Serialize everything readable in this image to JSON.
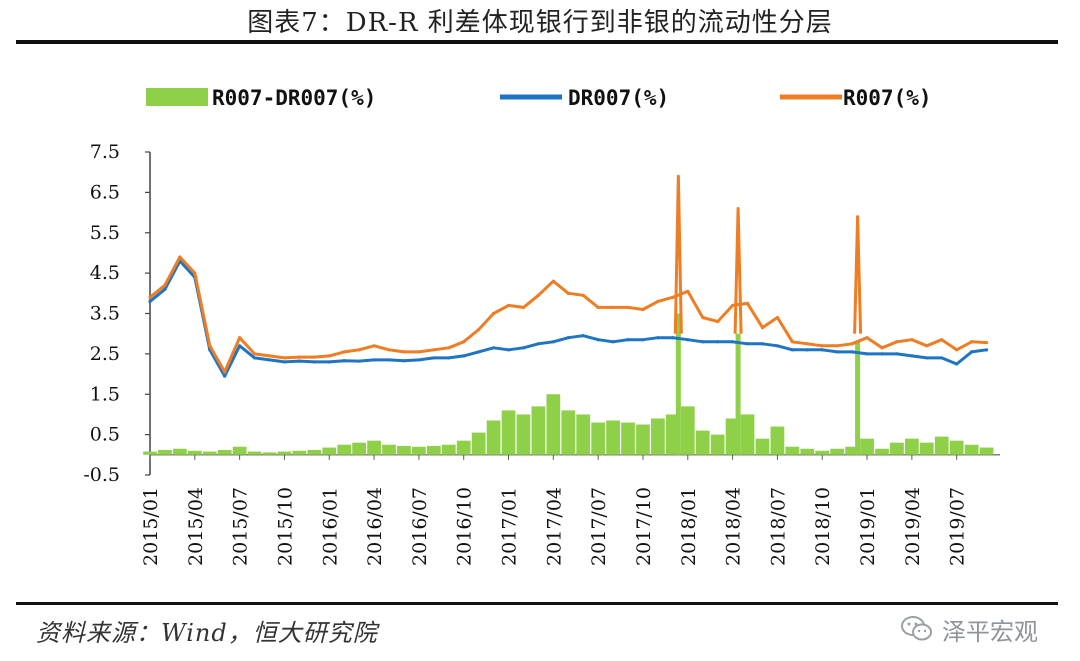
{
  "header": {
    "title": "图表7：DR-R 利差体现银行到非银的流动性分层"
  },
  "footer": {
    "source": "资料来源：Wind，恒大研究院",
    "watermark_text": "泽平宏观",
    "watermark_icon": "wechat-icon"
  },
  "colors": {
    "spread": "#8ed048",
    "dr007": "#1f74c4",
    "r007": "#ee7d24"
  },
  "chart_data": {
    "type": "line",
    "title": "",
    "xlabel": "",
    "ylabel": "",
    "ylim": [
      -0.5,
      7.5
    ],
    "y_ticks": [
      "7.5",
      "6.5",
      "5.5",
      "4.5",
      "3.5",
      "2.5",
      "1.5",
      "0.5",
      "-0.5"
    ],
    "x_range": [
      "2015/01",
      "2019/09"
    ],
    "x_ticks": [
      "2015/01",
      "2015/04",
      "2015/07",
      "2015/10",
      "2016/01",
      "2016/04",
      "2016/07",
      "2016/10",
      "2017/01",
      "2017/04",
      "2017/07",
      "2017/10",
      "2018/01",
      "2018/04",
      "2018/07",
      "2018/10",
      "2019/01",
      "2019/04",
      "2019/07"
    ],
    "legend_position": "top",
    "grid": false,
    "series": [
      {
        "name": "R007-DR007(%)",
        "style": "area",
        "x": [
          "2015/01",
          "2015/02",
          "2015/03",
          "2015/04",
          "2015/05",
          "2015/06",
          "2015/07",
          "2015/08",
          "2015/09",
          "2015/10",
          "2015/11",
          "2015/12",
          "2016/01",
          "2016/02",
          "2016/03",
          "2016/04",
          "2016/05",
          "2016/06",
          "2016/07",
          "2016/08",
          "2016/09",
          "2016/10",
          "2016/11",
          "2016/12",
          "2017/01",
          "2017/02",
          "2017/03",
          "2017/04",
          "2017/05",
          "2017/06",
          "2017/07",
          "2017/08",
          "2017/09",
          "2017/10",
          "2017/11",
          "2017/12",
          "2018/01",
          "2018/02",
          "2018/03",
          "2018/04",
          "2018/05",
          "2018/06",
          "2018/07",
          "2018/08",
          "2018/09",
          "2018/10",
          "2018/11",
          "2018/12",
          "2019/01",
          "2019/02",
          "2019/03",
          "2019/04",
          "2019/05",
          "2019/06",
          "2019/07",
          "2019/08",
          "2019/09"
        ],
        "values": [
          0.08,
          0.12,
          0.15,
          0.1,
          0.08,
          0.12,
          0.2,
          0.08,
          0.06,
          0.08,
          0.1,
          0.12,
          0.18,
          0.25,
          0.3,
          0.35,
          0.25,
          0.22,
          0.2,
          0.22,
          0.25,
          0.35,
          0.55,
          0.85,
          1.1,
          1.0,
          1.2,
          1.5,
          1.1,
          1.0,
          0.8,
          0.85,
          0.8,
          0.75,
          0.9,
          1.0,
          1.2,
          0.6,
          0.5,
          0.9,
          1.0,
          0.4,
          0.7,
          0.2,
          0.15,
          0.1,
          0.15,
          0.2,
          0.4,
          0.15,
          0.3,
          0.4,
          0.3,
          0.45,
          0.35,
          0.25,
          0.18
        ]
      },
      {
        "name": "DR007(%)",
        "style": "line",
        "x": [
          "2015/01",
          "2015/02",
          "2015/03",
          "2015/04",
          "2015/05",
          "2015/06",
          "2015/07",
          "2015/08",
          "2015/09",
          "2015/10",
          "2015/11",
          "2015/12",
          "2016/01",
          "2016/02",
          "2016/03",
          "2016/04",
          "2016/05",
          "2016/06",
          "2016/07",
          "2016/08",
          "2016/09",
          "2016/10",
          "2016/11",
          "2016/12",
          "2017/01",
          "2017/02",
          "2017/03",
          "2017/04",
          "2017/05",
          "2017/06",
          "2017/07",
          "2017/08",
          "2017/09",
          "2017/10",
          "2017/11",
          "2017/12",
          "2018/01",
          "2018/02",
          "2018/03",
          "2018/04",
          "2018/05",
          "2018/06",
          "2018/07",
          "2018/08",
          "2018/09",
          "2018/10",
          "2018/11",
          "2018/12",
          "2019/01",
          "2019/02",
          "2019/03",
          "2019/04",
          "2019/05",
          "2019/06",
          "2019/07",
          "2019/08",
          "2019/09"
        ],
        "values": [
          3.8,
          4.1,
          4.8,
          4.4,
          2.6,
          1.95,
          2.7,
          2.4,
          2.35,
          2.3,
          2.32,
          2.3,
          2.3,
          2.33,
          2.32,
          2.35,
          2.35,
          2.33,
          2.35,
          2.4,
          2.4,
          2.45,
          2.55,
          2.65,
          2.6,
          2.65,
          2.75,
          2.8,
          2.9,
          2.95,
          2.85,
          2.8,
          2.85,
          2.85,
          2.9,
          2.9,
          2.85,
          2.8,
          2.8,
          2.8,
          2.75,
          2.75,
          2.7,
          2.6,
          2.6,
          2.6,
          2.55,
          2.55,
          2.5,
          2.5,
          2.5,
          2.45,
          2.4,
          2.4,
          2.25,
          2.55,
          2.6
        ]
      },
      {
        "name": "R007(%)",
        "style": "line",
        "x": [
          "2015/01",
          "2015/02",
          "2015/03",
          "2015/04",
          "2015/05",
          "2015/06",
          "2015/07",
          "2015/08",
          "2015/09",
          "2015/10",
          "2015/11",
          "2015/12",
          "2016/01",
          "2016/02",
          "2016/03",
          "2016/04",
          "2016/05",
          "2016/06",
          "2016/07",
          "2016/08",
          "2016/09",
          "2016/10",
          "2016/11",
          "2016/12",
          "2017/01",
          "2017/02",
          "2017/03",
          "2017/04",
          "2017/05",
          "2017/06",
          "2017/07",
          "2017/08",
          "2017/09",
          "2017/10",
          "2017/11",
          "2017/12",
          "2018/01",
          "2018/02",
          "2018/03",
          "2018/04",
          "2018/05",
          "2018/06",
          "2018/07",
          "2018/08",
          "2018/09",
          "2018/10",
          "2018/11",
          "2018/12",
          "2019/01",
          "2019/02",
          "2019/03",
          "2019/04",
          "2019/05",
          "2019/06",
          "2019/07",
          "2019/08",
          "2019/09"
        ],
        "values": [
          3.9,
          4.2,
          4.9,
          4.5,
          2.7,
          2.05,
          2.9,
          2.5,
          2.45,
          2.4,
          2.42,
          2.42,
          2.45,
          2.55,
          2.6,
          2.7,
          2.6,
          2.55,
          2.55,
          2.6,
          2.65,
          2.8,
          3.1,
          3.5,
          3.7,
          3.65,
          3.95,
          4.3,
          4.0,
          3.95,
          3.65,
          3.65,
          3.65,
          3.6,
          3.8,
          3.9,
          4.05,
          3.4,
          3.3,
          3.7,
          3.75,
          3.15,
          3.4,
          2.8,
          2.75,
          2.7,
          2.7,
          2.75,
          2.9,
          2.65,
          2.8,
          2.85,
          2.7,
          2.85,
          2.6,
          2.8,
          2.78
        ]
      }
    ],
    "annotations_spikes": [
      {
        "series": "R007(%)",
        "x": "2017/12",
        "value": 6.9
      },
      {
        "series": "R007(%)",
        "x": "2018/04",
        "value": 6.1
      },
      {
        "series": "R007(%)",
        "x": "2018/12",
        "value": 5.9
      },
      {
        "series": "R007-DR007(%)",
        "x": "2017/12",
        "value": 3.5
      },
      {
        "series": "R007-DR007(%)",
        "x": "2018/04",
        "value": 3.0
      },
      {
        "series": "R007-DR007(%)",
        "x": "2018/12",
        "value": 2.8
      }
    ]
  }
}
